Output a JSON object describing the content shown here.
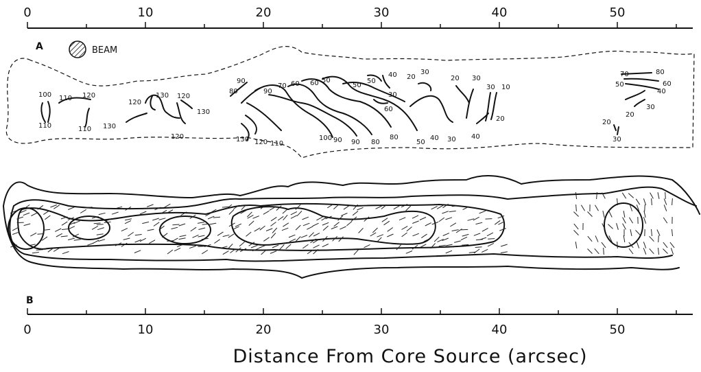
{
  "axis": {
    "top_ticks": [
      "0",
      "10",
      "20",
      "30",
      "40",
      "50"
    ],
    "bottom_ticks": [
      "0",
      "10",
      "20",
      "30",
      "40",
      "50"
    ],
    "title": "Distance From Core Source (arcsec)"
  },
  "panel_a": {
    "label": "A",
    "beam_label": "BEAM",
    "contour_labels": [
      "100",
      "110",
      "110",
      "120",
      "110",
      "120",
      "130",
      "130",
      "120",
      "130",
      "120",
      "80",
      "90",
      "90",
      "70",
      "60",
      "60",
      "50",
      "50",
      "50",
      "40",
      "30",
      "60",
      "20",
      "30",
      "20",
      "30",
      "30",
      "10",
      "20",
      "130",
      "120",
      "110",
      "100",
      "90",
      "90",
      "80",
      "80",
      "50",
      "40",
      "30",
      "40",
      "70",
      "80",
      "50",
      "60",
      "40",
      "30",
      "20",
      "20",
      "30"
    ]
  },
  "panel_b": {
    "label": "B"
  }
}
